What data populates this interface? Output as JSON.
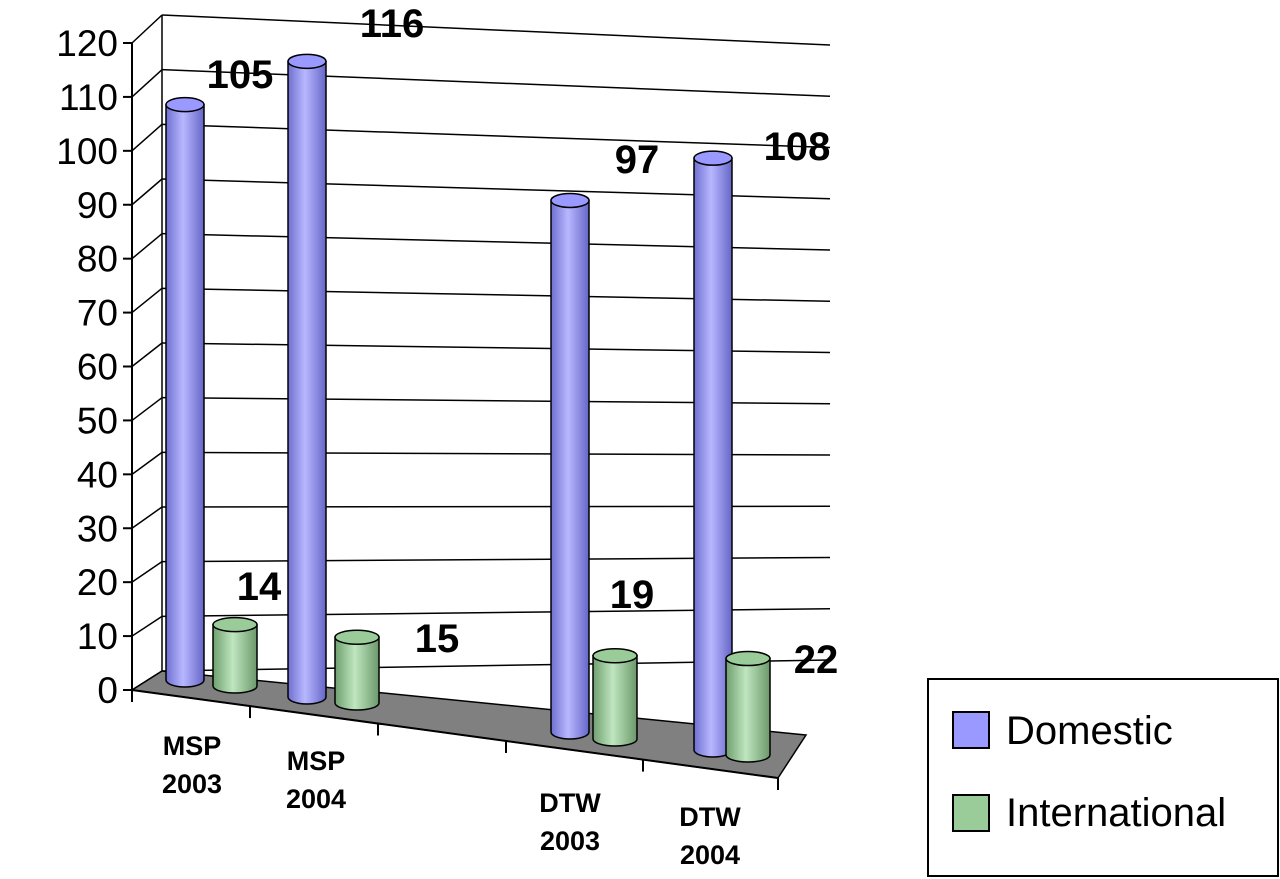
{
  "chart_data": {
    "type": "bar",
    "style": "3d-cylinder",
    "categories": [
      [
        "MSP",
        "2003"
      ],
      [
        "MSP",
        "2004"
      ],
      [
        "DTW",
        "2003"
      ],
      [
        "DTW",
        "2004"
      ]
    ],
    "series": [
      {
        "name": "Domestic",
        "values": [
          105,
          116,
          97,
          108
        ],
        "color": "#9999ff"
      },
      {
        "name": "International",
        "values": [
          14,
          15,
          19,
          22
        ],
        "color": "#99cc99"
      }
    ],
    "ylim": [
      0,
      120
    ],
    "yticks": [
      0,
      10,
      20,
      30,
      40,
      50,
      60,
      70,
      80,
      90,
      100,
      110,
      120
    ],
    "grid": true,
    "legend": "right",
    "title": "",
    "xlabel": "",
    "ylabel": "",
    "floor_color": "#808080"
  }
}
